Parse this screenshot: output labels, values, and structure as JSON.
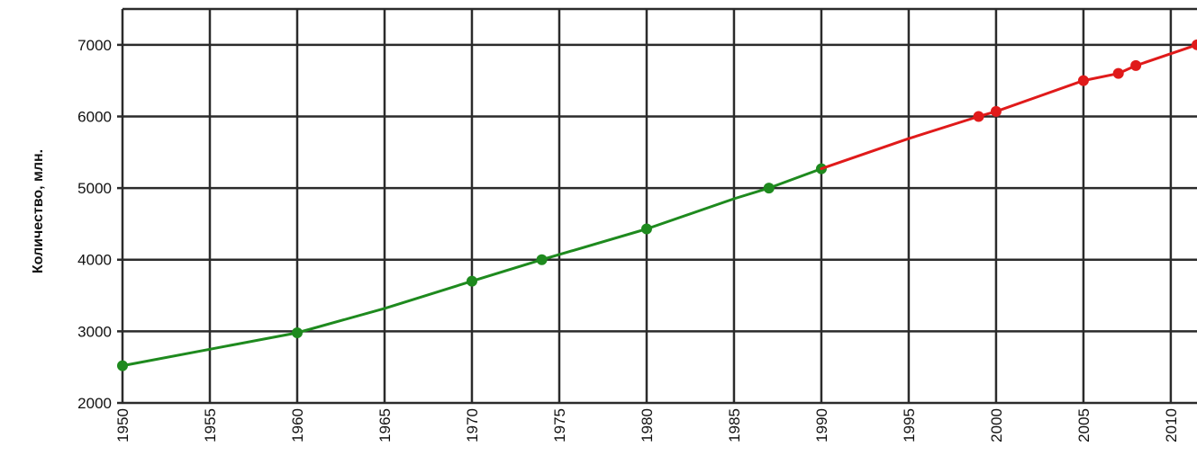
{
  "chart_data": {
    "type": "line",
    "title": "",
    "xlabel": "",
    "ylabel": "Количество, млн.",
    "xlim": [
      1950,
      2011.5
    ],
    "ylim": [
      2000,
      7500
    ],
    "x_ticks": [
      1950,
      1955,
      1960,
      1965,
      1970,
      1975,
      1980,
      1985,
      1990,
      1995,
      2000,
      2005,
      2010
    ],
    "y_ticks": [
      2000,
      3000,
      4000,
      5000,
      6000,
      7000
    ],
    "grid": true,
    "legend": "none",
    "series": [
      {
        "color": "#1e8a1e",
        "x": [
          1950,
          1955,
          1960,
          1965,
          1970,
          1974,
          1980,
          1985,
          1987,
          1990
        ],
        "y": [
          2520,
          2750,
          2980,
          3320,
          3700,
          4000,
          4430,
          4850,
          5000,
          5270
        ],
        "markers": [
          1950,
          1960,
          1970,
          1974,
          1980,
          1987,
          1990
        ]
      },
      {
        "color": "#e01a1a",
        "x": [
          1990,
          1995,
          1999,
          2000,
          2005,
          2007,
          2008,
          2011.5
        ],
        "y": [
          5270,
          5690,
          6000,
          6070,
          6500,
          6600,
          6710,
          7000
        ],
        "markers": [
          1999,
          2000,
          2005,
          2007,
          2008,
          2011.5
        ]
      }
    ]
  }
}
